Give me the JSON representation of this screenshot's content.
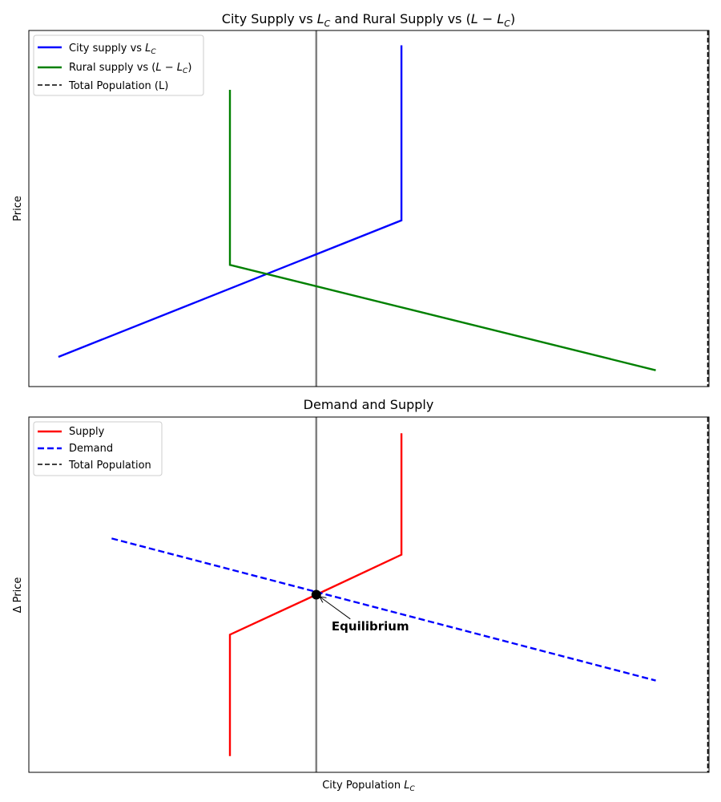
{
  "chart_data": [
    {
      "type": "line",
      "title_parts": [
        "City Supply vs ",
        "L",
        "C",
        " and Rural Supply vs (",
        "L",
        " − ",
        "L",
        "C",
        ")"
      ],
      "xlabel": "",
      "ylabel": "Price",
      "xlim": [
        -0.5,
        11.0
      ],
      "ylim": [
        0.0,
        12.0
      ],
      "xticks": [],
      "yticks": [],
      "grid": false,
      "legend_position": "top-left",
      "series": [
        {
          "name_parts": [
            "City supply vs ",
            "L",
            "C",
            ""
          ],
          "color": "#0000ff",
          "style": "solid",
          "x": [
            0.0,
            5.8,
            5.8
          ],
          "y": [
            1.0,
            5.6,
            11.5
          ]
        },
        {
          "name_parts": [
            "Rural supply vs (",
            "L",
            " − ",
            "L",
            "C",
            ")"
          ],
          "color": "#008000",
          "style": "solid",
          "x": [
            10.1,
            2.9,
            2.9
          ],
          "y": [
            0.55,
            4.1,
            10.0
          ]
        },
        {
          "name_parts": [
            "Total Population (L)",
            "",
            "",
            "",
            "",
            ""
          ],
          "color": "#000000",
          "style": "dashed",
          "vline_x": 10.98
        }
      ],
      "reference_line": {
        "x": 4.36,
        "color": "#808080"
      }
    },
    {
      "type": "line",
      "title": "Demand and Supply",
      "xlabel_parts": [
        "City Population ",
        "L",
        "C"
      ],
      "ylabel": "Δ Price",
      "xlim": [
        -0.5,
        11.0
      ],
      "ylim": [
        -6.0,
        6.0
      ],
      "xticks": [],
      "yticks": [],
      "grid": false,
      "legend_position": "top-left",
      "series": [
        {
          "name": "Supply",
          "color": "#ff0000",
          "style": "solid",
          "x": [
            2.9,
            2.9,
            4.36,
            5.8,
            5.8
          ],
          "y": [
            -5.45,
            -1.35,
            0.0,
            1.35,
            5.45
          ]
        },
        {
          "name": "Demand",
          "color": "#0000ff",
          "style": "dashed",
          "x": [
            0.9,
            10.1
          ],
          "y": [
            1.9,
            -2.9
          ]
        },
        {
          "name": "Total Population",
          "color": "#000000",
          "style": "dashed",
          "vline_x": 10.98
        }
      ],
      "reference_line": {
        "x": 4.36,
        "color": "#808080"
      },
      "equilibrium": {
        "x": 4.36,
        "y": 0.0,
        "label": "Equilibrium",
        "label_x": 4.8,
        "label_y": -1.2
      }
    }
  ]
}
